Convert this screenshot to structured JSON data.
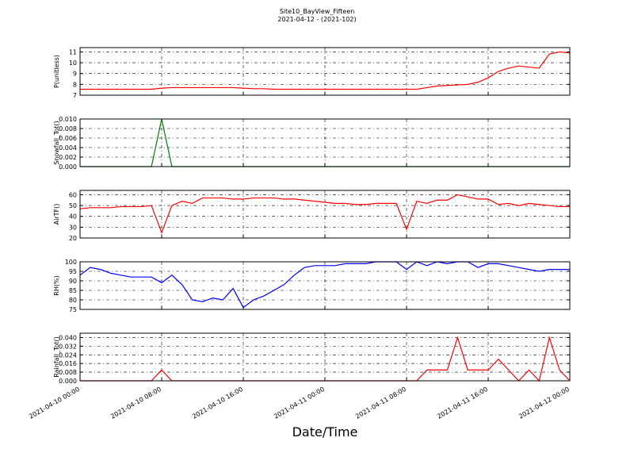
{
  "chart_data": [
    {
      "type": "line",
      "title": "Site10_BayView_Fifteen",
      "subtitle": "2021-04-12 - (2021-102)",
      "ylabel": "P(unitless)",
      "color": "#ff0000",
      "grid": true,
      "x": [
        "2021-04-10 00:00",
        "2021-04-10 01:00",
        "2021-04-10 02:00",
        "2021-04-10 03:00",
        "2021-04-10 04:00",
        "2021-04-10 05:00",
        "2021-04-10 06:00",
        "2021-04-10 07:00",
        "2021-04-10 08:00",
        "2021-04-10 09:00",
        "2021-04-10 10:00",
        "2021-04-10 11:00",
        "2021-04-10 12:00",
        "2021-04-10 13:00",
        "2021-04-10 14:00",
        "2021-04-10 15:00",
        "2021-04-10 16:00",
        "2021-04-10 17:00",
        "2021-04-10 18:00",
        "2021-04-10 19:00",
        "2021-04-10 20:00",
        "2021-04-10 21:00",
        "2021-04-10 22:00",
        "2021-04-10 23:00",
        "2021-04-11 00:00",
        "2021-04-11 01:00",
        "2021-04-11 02:00",
        "2021-04-11 03:00",
        "2021-04-11 04:00",
        "2021-04-11 05:00",
        "2021-04-11 06:00",
        "2021-04-11 07:00",
        "2021-04-11 08:00",
        "2021-04-11 09:00",
        "2021-04-11 10:00",
        "2021-04-11 11:00",
        "2021-04-11 12:00",
        "2021-04-11 13:00",
        "2021-04-11 14:00",
        "2021-04-11 15:00",
        "2021-04-11 16:00",
        "2021-04-11 17:00",
        "2021-04-11 18:00",
        "2021-04-11 19:00",
        "2021-04-11 20:00",
        "2021-04-11 21:00",
        "2021-04-11 22:00",
        "2021-04-11 23:00",
        "2021-04-12 00:00"
      ],
      "values": [
        7.55,
        7.55,
        7.55,
        7.55,
        7.55,
        7.55,
        7.55,
        7.55,
        7.65,
        7.7,
        7.7,
        7.7,
        7.7,
        7.7,
        7.7,
        7.7,
        7.65,
        7.6,
        7.6,
        7.55,
        7.55,
        7.55,
        7.55,
        7.55,
        7.55,
        7.55,
        7.55,
        7.55,
        7.55,
        7.55,
        7.55,
        7.55,
        7.55,
        7.55,
        7.7,
        7.85,
        7.9,
        7.95,
        8.0,
        8.2,
        8.6,
        9.2,
        9.5,
        9.7,
        9.6,
        9.5,
        10.8,
        11.0,
        10.9
      ],
      "ylim": [
        7,
        11.4
      ],
      "yticks": [
        7,
        8,
        9,
        10,
        11
      ],
      "xlim": [
        "2021-04-10 00:00",
        "2021-04-12 00:00"
      ],
      "xticks": [
        "2021-04-10 00:00",
        "2021-04-10 08:00",
        "2021-04-10 16:00",
        "2021-04-11 00:00",
        "2021-04-11 08:00",
        "2021-04-11 16:00",
        "2021-04-12 00:00"
      ]
    },
    {
      "type": "line",
      "ylabel": "Snowfall_Tot()",
      "color": "#008000",
      "grid": true,
      "x": [
        "2021-04-10 00:00",
        "2021-04-10 01:00",
        "2021-04-10 02:00",
        "2021-04-10 03:00",
        "2021-04-10 04:00",
        "2021-04-10 05:00",
        "2021-04-10 06:00",
        "2021-04-10 07:00",
        "2021-04-10 08:00",
        "2021-04-10 09:00",
        "2021-04-10 10:00",
        "2021-04-10 11:00",
        "2021-04-10 12:00",
        "2021-04-10 13:00",
        "2021-04-10 14:00",
        "2021-04-10 15:00",
        "2021-04-10 16:00",
        "2021-04-10 17:00",
        "2021-04-10 18:00",
        "2021-04-10 19:00",
        "2021-04-10 20:00",
        "2021-04-10 21:00",
        "2021-04-10 22:00",
        "2021-04-10 23:00",
        "2021-04-11 00:00",
        "2021-04-11 01:00",
        "2021-04-11 02:00",
        "2021-04-11 03:00",
        "2021-04-11 04:00",
        "2021-04-11 05:00",
        "2021-04-11 06:00",
        "2021-04-11 07:00",
        "2021-04-11 08:00",
        "2021-04-11 09:00",
        "2021-04-11 10:00",
        "2021-04-11 11:00",
        "2021-04-11 12:00",
        "2021-04-11 13:00",
        "2021-04-11 14:00",
        "2021-04-11 15:00",
        "2021-04-11 16:00",
        "2021-04-11 17:00",
        "2021-04-11 18:00",
        "2021-04-11 19:00",
        "2021-04-11 20:00",
        "2021-04-11 21:00",
        "2021-04-11 22:00",
        "2021-04-11 23:00",
        "2021-04-12 00:00"
      ],
      "values": [
        0,
        0,
        0,
        0,
        0,
        0,
        0,
        0,
        0.01,
        0,
        0,
        0,
        0,
        0,
        0,
        0,
        0,
        0,
        0,
        0,
        0,
        0,
        0,
        0,
        0,
        0,
        0,
        0,
        0,
        0,
        0,
        0,
        0,
        0,
        0,
        0,
        0,
        0,
        0,
        0,
        0,
        0,
        0,
        0,
        0,
        0,
        0,
        0,
        0
      ],
      "ylim": [
        0,
        0.01
      ],
      "yticks": [
        {
          "value": 0,
          "label": "0.000"
        },
        {
          "value": 0.002,
          "label": "0.002"
        },
        {
          "value": 0.004,
          "label": "0.004"
        },
        {
          "value": 0.006,
          "label": "0.006"
        },
        {
          "value": 0.008,
          "label": "0.008"
        },
        {
          "value": 0.01,
          "label": "0.010"
        }
      ],
      "xlim": [
        "2021-04-10 00:00",
        "2021-04-12 00:00"
      ],
      "xticks": [
        "2021-04-10 00:00",
        "2021-04-10 08:00",
        "2021-04-10 16:00",
        "2021-04-11 00:00",
        "2021-04-11 08:00",
        "2021-04-11 16:00",
        "2021-04-12 00:00"
      ]
    },
    {
      "type": "line",
      "ylabel": "AirTF()",
      "color": "#ff0000",
      "grid": true,
      "x": [
        "2021-04-10 00:00",
        "2021-04-10 01:00",
        "2021-04-10 02:00",
        "2021-04-10 03:00",
        "2021-04-10 04:00",
        "2021-04-10 05:00",
        "2021-04-10 06:00",
        "2021-04-10 07:00",
        "2021-04-10 08:00",
        "2021-04-10 09:00",
        "2021-04-10 10:00",
        "2021-04-10 11:00",
        "2021-04-10 12:00",
        "2021-04-10 13:00",
        "2021-04-10 14:00",
        "2021-04-10 15:00",
        "2021-04-10 16:00",
        "2021-04-10 17:00",
        "2021-04-10 18:00",
        "2021-04-10 19:00",
        "2021-04-10 20:00",
        "2021-04-10 21:00",
        "2021-04-10 22:00",
        "2021-04-10 23:00",
        "2021-04-11 00:00",
        "2021-04-11 01:00",
        "2021-04-11 02:00",
        "2021-04-11 03:00",
        "2021-04-11 04:00",
        "2021-04-11 05:00",
        "2021-04-11 06:00",
        "2021-04-11 07:00",
        "2021-04-11 08:00",
        "2021-04-11 09:00",
        "2021-04-11 10:00",
        "2021-04-11 11:00",
        "2021-04-11 12:00",
        "2021-04-11 13:00",
        "2021-04-11 14:00",
        "2021-04-11 15:00",
        "2021-04-11 16:00",
        "2021-04-11 17:00",
        "2021-04-11 18:00",
        "2021-04-11 19:00",
        "2021-04-11 20:00",
        "2021-04-11 21:00",
        "2021-04-11 22:00",
        "2021-04-11 23:00",
        "2021-04-12 00:00"
      ],
      "values": [
        47,
        48,
        48,
        48,
        49,
        49,
        49,
        50,
        25,
        50,
        54,
        52,
        57,
        57,
        57,
        56,
        56,
        57,
        57,
        57,
        56,
        56,
        55,
        54,
        53,
        52,
        52,
        51,
        51,
        52,
        52,
        52,
        28,
        54,
        52,
        55,
        55,
        60,
        58,
        56,
        56,
        51,
        52,
        50,
        52,
        51,
        50,
        49,
        49
      ],
      "ylim": [
        20,
        64
      ],
      "yticks": [
        20,
        30,
        40,
        50,
        60
      ],
      "xlim": [
        "2021-04-10 00:00",
        "2021-04-12 00:00"
      ],
      "xticks": [
        "2021-04-10 00:00",
        "2021-04-10 08:00",
        "2021-04-10 16:00",
        "2021-04-11 00:00",
        "2021-04-11 08:00",
        "2021-04-11 16:00",
        "2021-04-12 00:00"
      ]
    },
    {
      "type": "line",
      "ylabel": "RH(%)",
      "color": "#0000ff",
      "grid": true,
      "x": [
        "2021-04-10 00:00",
        "2021-04-10 01:00",
        "2021-04-10 02:00",
        "2021-04-10 03:00",
        "2021-04-10 04:00",
        "2021-04-10 05:00",
        "2021-04-10 06:00",
        "2021-04-10 07:00",
        "2021-04-10 08:00",
        "2021-04-10 09:00",
        "2021-04-10 10:00",
        "2021-04-10 11:00",
        "2021-04-10 12:00",
        "2021-04-10 13:00",
        "2021-04-10 14:00",
        "2021-04-10 15:00",
        "2021-04-10 16:00",
        "2021-04-10 17:00",
        "2021-04-10 18:00",
        "2021-04-10 19:00",
        "2021-04-10 20:00",
        "2021-04-10 21:00",
        "2021-04-10 22:00",
        "2021-04-10 23:00",
        "2021-04-11 00:00",
        "2021-04-11 01:00",
        "2021-04-11 02:00",
        "2021-04-11 03:00",
        "2021-04-11 04:00",
        "2021-04-11 05:00",
        "2021-04-11 06:00",
        "2021-04-11 07:00",
        "2021-04-11 08:00",
        "2021-04-11 09:00",
        "2021-04-11 10:00",
        "2021-04-11 11:00",
        "2021-04-11 12:00",
        "2021-04-11 13:00",
        "2021-04-11 14:00",
        "2021-04-11 15:00",
        "2021-04-11 16:00",
        "2021-04-11 17:00",
        "2021-04-11 18:00",
        "2021-04-11 19:00",
        "2021-04-11 20:00",
        "2021-04-11 21:00",
        "2021-04-11 22:00",
        "2021-04-11 23:00",
        "2021-04-12 00:00"
      ],
      "values": [
        93,
        97,
        96,
        94,
        93,
        92,
        92,
        92,
        89,
        93,
        88,
        80,
        79,
        81,
        80,
        86,
        76,
        80,
        82,
        85,
        88,
        93,
        97,
        98,
        98,
        98,
        99,
        99,
        99,
        100,
        100,
        100,
        96,
        100,
        98,
        100,
        99,
        100,
        100,
        97,
        99,
        99,
        98,
        97,
        96,
        95,
        96,
        96,
        96
      ],
      "ylim": [
        75,
        100
      ],
      "yticks": [
        75,
        80,
        85,
        90,
        95,
        100
      ],
      "xlim": [
        "2021-04-10 00:00",
        "2021-04-12 00:00"
      ],
      "xticks": [
        "2021-04-10 00:00",
        "2021-04-10 08:00",
        "2021-04-10 16:00",
        "2021-04-11 00:00",
        "2021-04-11 08:00",
        "2021-04-11 16:00",
        "2021-04-12 00:00"
      ]
    },
    {
      "type": "line",
      "ylabel": "Rainfall_Tot()",
      "xlabel": "Date/Time",
      "color": "#ff0000",
      "grid": true,
      "x": [
        "2021-04-10 00:00",
        "2021-04-10 01:00",
        "2021-04-10 02:00",
        "2021-04-10 03:00",
        "2021-04-10 04:00",
        "2021-04-10 05:00",
        "2021-04-10 06:00",
        "2021-04-10 07:00",
        "2021-04-10 08:00",
        "2021-04-10 09:00",
        "2021-04-10 10:00",
        "2021-04-10 11:00",
        "2021-04-10 12:00",
        "2021-04-10 13:00",
        "2021-04-10 14:00",
        "2021-04-10 15:00",
        "2021-04-10 16:00",
        "2021-04-10 17:00",
        "2021-04-10 18:00",
        "2021-04-10 19:00",
        "2021-04-10 20:00",
        "2021-04-10 21:00",
        "2021-04-10 22:00",
        "2021-04-10 23:00",
        "2021-04-11 00:00",
        "2021-04-11 01:00",
        "2021-04-11 02:00",
        "2021-04-11 03:00",
        "2021-04-11 04:00",
        "2021-04-11 05:00",
        "2021-04-11 06:00",
        "2021-04-11 07:00",
        "2021-04-11 08:00",
        "2021-04-11 09:00",
        "2021-04-11 10:00",
        "2021-04-11 11:00",
        "2021-04-11 12:00",
        "2021-04-11 13:00",
        "2021-04-11 14:00",
        "2021-04-11 15:00",
        "2021-04-11 16:00",
        "2021-04-11 17:00",
        "2021-04-11 18:00",
        "2021-04-11 19:00",
        "2021-04-11 20:00",
        "2021-04-11 21:00",
        "2021-04-11 22:00",
        "2021-04-11 23:00",
        "2021-04-12 00:00"
      ],
      "values": [
        0,
        0,
        0,
        0,
        0,
        0,
        0,
        0,
        0.01,
        0,
        0,
        0,
        0,
        0,
        0,
        0,
        0,
        0,
        0,
        0,
        0,
        0,
        0,
        0,
        0,
        0,
        0,
        0,
        0,
        0,
        0,
        0,
        0,
        0,
        0.01,
        0.01,
        0.01,
        0.04,
        0.01,
        0.01,
        0.01,
        0.02,
        0.01,
        0,
        0.01,
        0,
        0.04,
        0.01,
        0
      ],
      "ylim": [
        0,
        0.044
      ],
      "yticks": [
        {
          "value": 0,
          "label": "0.000"
        },
        {
          "value": 0.008,
          "label": "0.008"
        },
        {
          "value": 0.016,
          "label": "0.016"
        },
        {
          "value": 0.024,
          "label": "0.024"
        },
        {
          "value": 0.032,
          "label": "0.032"
        },
        {
          "value": 0.04,
          "label": "0.040"
        }
      ],
      "xlim": [
        "2021-04-10 00:00",
        "2021-04-12 00:00"
      ],
      "xticks": [
        "2021-04-10 00:00",
        "2021-04-10 08:00",
        "2021-04-10 16:00",
        "2021-04-11 00:00",
        "2021-04-11 08:00",
        "2021-04-11 16:00",
        "2021-04-12 00:00"
      ]
    }
  ]
}
